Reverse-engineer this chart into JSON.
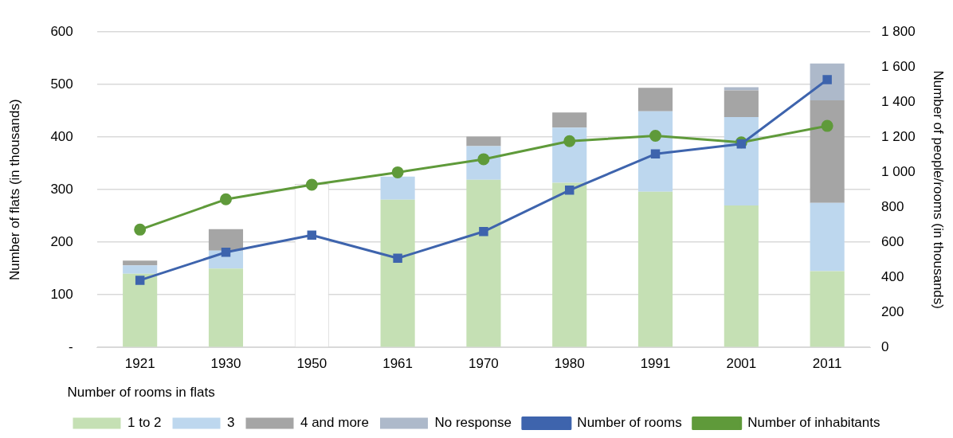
{
  "chart_data": {
    "type": "bar",
    "stacked": true,
    "ylabel": "Number of flats (in thousands)",
    "y2label": "Number of people/rooms (in thousands)",
    "legend_title": "Number of rooms in flats",
    "categories": [
      "1921",
      "1930",
      "1950",
      "1961",
      "1970",
      "1980",
      "1991",
      "2001",
      "2011"
    ],
    "series": [
      {
        "color": "#ffffff",
        "values": [
          null,
          null,
          311,
          null,
          null,
          null,
          null,
          null,
          null
        ]
      },
      {
        "name": "1 to 2",
        "color": "#c5e0b4",
        "values": [
          140,
          150,
          null,
          281,
          319,
          313,
          296,
          270,
          145
        ]
      },
      {
        "name": "3",
        "color": "#bdd7ee",
        "values": [
          16,
          34,
          null,
          44,
          64,
          105,
          153,
          168,
          130
        ]
      },
      {
        "name": "4 and more",
        "color": "#a5a5a5",
        "values": [
          9,
          41,
          null,
          null,
          18,
          29,
          45,
          51,
          195
        ]
      },
      {
        "name": "No response",
        "color": "#adb9ca",
        "values": [
          null,
          null,
          null,
          null,
          null,
          null,
          null,
          6,
          70
        ]
      },
      {
        "name": "Number of rooms",
        "type": "line",
        "axis": "y2",
        "marker": "square",
        "color": "#3e64ad",
        "values": [
          383,
          543,
          641,
          509,
          661,
          897,
          1104,
          1161,
          1528
        ]
      },
      {
        "name": "Number of inhabitants",
        "type": "line",
        "axis": "y2",
        "marker": "circle",
        "color": "#5f9a3a",
        "values": [
          672,
          845,
          928,
          999,
          1074,
          1177,
          1208,
          1170,
          1264
        ]
      }
    ],
    "ylim": [
      0,
      600
    ],
    "yticks": [
      {
        "value": 0,
        "label": "-"
      },
      100,
      200,
      300,
      400,
      500,
      600
    ],
    "y2lim": [
      0,
      1800
    ],
    "y2ticks": [
      0,
      200,
      400,
      600,
      800,
      {
        "value": 1000,
        "label": "1 000"
      },
      {
        "value": 1200,
        "label": "1 200"
      },
      {
        "value": 1400,
        "label": "1 400"
      },
      {
        "value": 1600,
        "label": "1 600"
      },
      {
        "value": 1800,
        "label": "1 800"
      }
    ],
    "grid": "y",
    "legend": "bottom"
  }
}
